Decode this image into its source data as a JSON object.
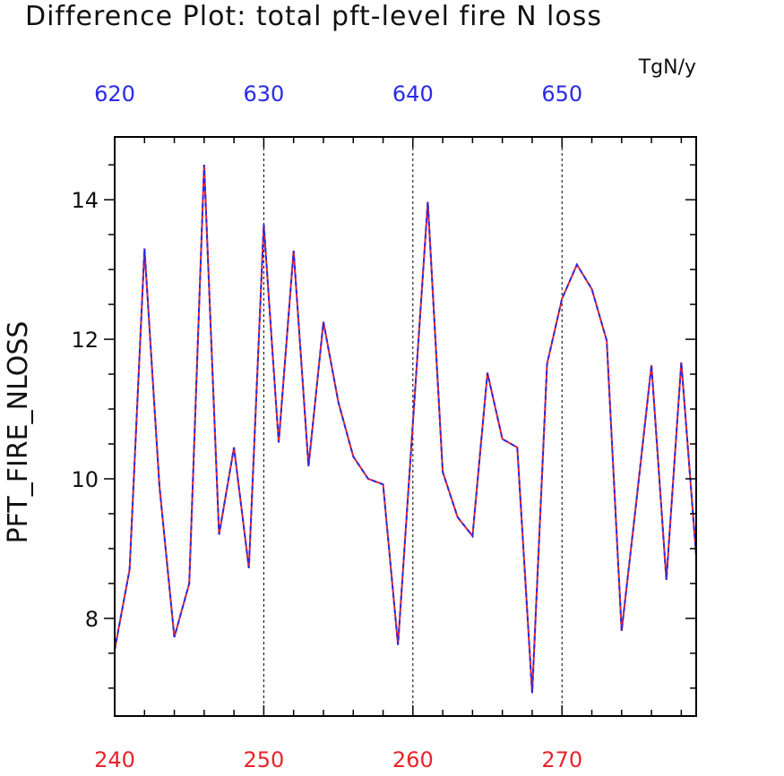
{
  "chart_data": {
    "type": "line",
    "title": "Difference Plot: total pft-level fire N loss",
    "units": "TgN/y",
    "ylabel": "PFT_FIRE_NLOSS",
    "xlim": [
      240,
      279
    ],
    "ylim": [
      6.6,
      14.9
    ],
    "ytick_values": [
      8,
      10,
      12,
      14
    ],
    "ytick_labels": [
      "8",
      "10",
      "12",
      "14"
    ],
    "yminor_step": 0.5,
    "x_bottom_ticks": [
      240,
      250,
      260,
      270
    ],
    "x_bottom_labels": [
      "240",
      "250",
      "260",
      "270"
    ],
    "x_top_ticks": [
      620,
      630,
      640,
      650
    ],
    "x_top_labels": [
      "620",
      "630",
      "640",
      "650"
    ],
    "x_top_offset": 380,
    "grid_x": [
      250,
      260,
      270
    ],
    "x": [
      240,
      241,
      242,
      243,
      244,
      245,
      246,
      247,
      248,
      249,
      250,
      251,
      252,
      253,
      254,
      255,
      256,
      257,
      258,
      259,
      260,
      261,
      262,
      263,
      264,
      265,
      266,
      267,
      268,
      269,
      270,
      271,
      272,
      273,
      274,
      275,
      276,
      277,
      278,
      279
    ],
    "series": [
      {
        "color": "#e8232a",
        "style": "solid",
        "values": [
          7.55,
          8.7,
          13.3,
          9.9,
          7.73,
          8.5,
          14.5,
          9.2,
          10.45,
          8.72,
          13.65,
          10.52,
          13.27,
          10.18,
          12.25,
          11.1,
          10.32,
          10.0,
          9.92,
          7.62,
          10.8,
          13.97,
          10.1,
          9.45,
          9.18,
          11.52,
          10.57,
          10.45,
          6.93,
          11.65,
          12.58,
          13.07,
          12.72,
          11.98,
          7.82,
          9.7,
          11.63,
          8.55,
          11.67,
          8.9
        ]
      },
      {
        "color": "#2a2ae8",
        "style": "dashed",
        "values": [
          7.55,
          8.7,
          13.3,
          9.9,
          7.73,
          8.5,
          14.5,
          9.2,
          10.45,
          8.72,
          13.65,
          10.52,
          13.27,
          10.18,
          12.25,
          11.1,
          10.32,
          10.0,
          9.92,
          7.62,
          10.8,
          13.97,
          10.1,
          9.45,
          9.18,
          11.52,
          10.57,
          10.45,
          6.93,
          11.65,
          12.58,
          13.07,
          12.72,
          11.98,
          7.82,
          9.7,
          11.63,
          8.55,
          11.67,
          8.9
        ]
      }
    ]
  }
}
